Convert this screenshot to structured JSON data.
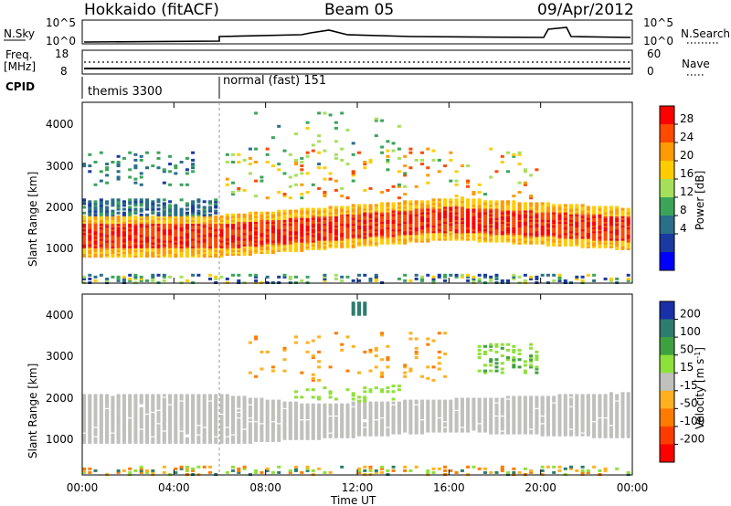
{
  "header": {
    "station": "Hokkaido (fitACF)",
    "beam": "Beam 05",
    "date": "09/Apr/2012"
  },
  "noise_panel": {
    "left_label": "N.Sky",
    "right_label": "N.Search",
    "left_ticks": [
      "10^5",
      "10^0"
    ],
    "right_ticks": [
      "10^5",
      "10^0"
    ]
  },
  "freq_panel": {
    "left_label_line1": "Freq.",
    "left_label_line2": "[MHz]",
    "right_label": "Nave",
    "left_ticks": [
      "18",
      "8"
    ],
    "right_ticks": [
      "60",
      "0"
    ]
  },
  "cpid_panel": {
    "label": "CPID",
    "mode1": "themis 3300",
    "mode2": "normal (fast) 151"
  },
  "time_axis": {
    "title": "Time UT",
    "ticks": [
      "00:00",
      "04:00",
      "08:00",
      "12:00",
      "16:00",
      "20:00",
      "00:00"
    ]
  },
  "power_colorbar": {
    "title": "Power [dB]",
    "labels": [
      "28",
      "24",
      "20",
      "16",
      "12",
      "8",
      "4"
    ],
    "colors": [
      "#ff0000",
      "#ff4a00",
      "#ff9a00",
      "#ffcc00",
      "#a6e05a",
      "#3aa55a",
      "#2a6e8a",
      "#1a3aa0",
      "#0000ff"
    ]
  },
  "velocity_colorbar": {
    "title": "Velocity [m s",
    "title_sup": "-1",
    "title_end": "]",
    "labels": [
      "200",
      "100",
      "50",
      "15",
      "-15",
      "-50",
      "-100",
      "-200"
    ],
    "colors": [
      "#1a30a8",
      "#2d7d6e",
      "#3fa040",
      "#8ee03a",
      "#c0c0bc",
      "#ffb020",
      "#ff7a00",
      "#ff3c00",
      "#ff0000"
    ]
  },
  "chart_data": [
    {
      "type": "heatmap",
      "title": "Power",
      "xlabel": "Time UT",
      "ylabel": "Slant Range [km]",
      "xlim": [
        "00:00",
        "24:00"
      ],
      "ylim": [
        180,
        4500
      ],
      "yticks": [
        "1000",
        "2000",
        "3000",
        "4000"
      ],
      "features": [
        {
          "desc": "strong near-range band",
          "t": [
            0,
            24
          ],
          "range_km": [
            1000,
            1600
          ],
          "power_db": 26
        },
        {
          "desc": "weak far band",
          "t": [
            0,
            6
          ],
          "range_km": [
            1600,
            2200
          ],
          "power_db": 8
        },
        {
          "desc": "F-region streaks",
          "t": [
            12,
            20
          ],
          "range_km": [
            2000,
            3300
          ],
          "power_db": 24
        },
        {
          "desc": "ground scatter bits",
          "t": [
            7,
            13
          ],
          "range_km": [
            3000,
            4200
          ],
          "power_db": 14
        }
      ]
    },
    {
      "type": "heatmap",
      "title": "Velocity",
      "xlabel": "Time UT",
      "ylabel": "Slant Range [km]",
      "xlim": [
        "00:00",
        "24:00"
      ],
      "ylim": [
        180,
        4500
      ],
      "yticks": [
        "1000",
        "2000",
        "3000",
        "4000"
      ],
      "features": [
        {
          "desc": "ground scatter band",
          "t": [
            0,
            24
          ],
          "range_km": [
            900,
            2100
          ],
          "velocity_ms": 0
        },
        {
          "desc": "positive velocity streaks",
          "t": [
            17,
            20
          ],
          "range_km": [
            2600,
            3300
          ],
          "velocity_ms": 60
        },
        {
          "desc": "negative velocity patches",
          "t": [
            7,
            16
          ],
          "range_km": [
            2400,
            3600
          ],
          "velocity_ms": -60
        }
      ]
    }
  ]
}
